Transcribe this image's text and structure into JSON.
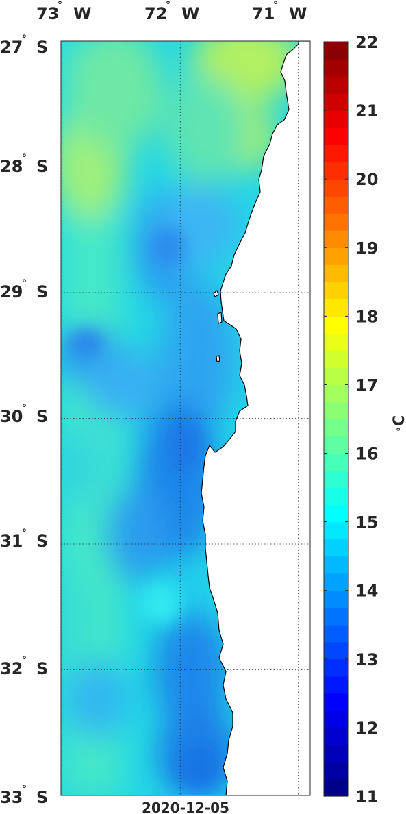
{
  "map": {
    "date_label": "2020-12-05",
    "lon_ticks": [
      {
        "deg": "73",
        "hemi": "W",
        "value": -73
      },
      {
        "deg": "72",
        "hemi": "W",
        "value": -72
      },
      {
        "deg": "71",
        "hemi": "W",
        "value": -71
      }
    ],
    "lat_ticks": [
      {
        "deg": "27",
        "hemi": "S",
        "value": -27
      },
      {
        "deg": "28",
        "hemi": "S",
        "value": -28
      },
      {
        "deg": "29",
        "hemi": "S",
        "value": -29
      },
      {
        "deg": "30",
        "hemi": "S",
        "value": -30
      },
      {
        "deg": "31",
        "hemi": "S",
        "value": -31
      },
      {
        "deg": "32",
        "hemi": "S",
        "value": -32
      },
      {
        "deg": "33",
        "hemi": "S",
        "value": -33
      }
    ],
    "lon_range": [
      -73.01,
      -70.9
    ],
    "lat_range": [
      -33,
      -27
    ],
    "grid": true,
    "colors": {
      "land": "#ffffff",
      "coast": "#000000",
      "grid": "#262626"
    }
  },
  "colorbar": {
    "unit_degree": "°",
    "unit_letter": "C",
    "range": [
      11,
      22
    ],
    "ticks": [
      "11",
      "12",
      "13",
      "14",
      "15",
      "16",
      "17",
      "18",
      "19",
      "20",
      "21",
      "22"
    ],
    "colormap": "jet",
    "placement": "right"
  }
}
